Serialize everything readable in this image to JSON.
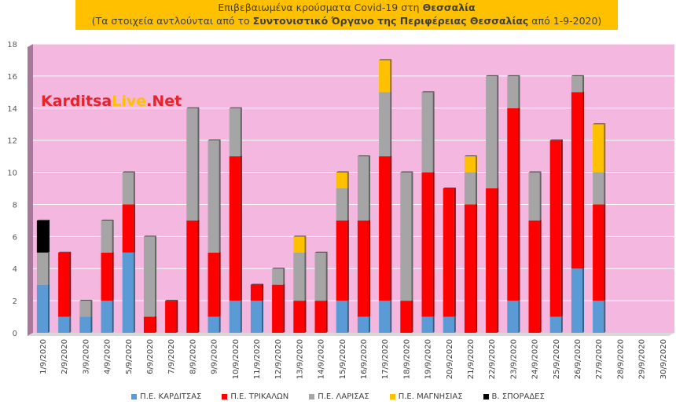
{
  "title": {
    "line1_prefix": "Επιβεβαιωμένα κρούσματα Covid-19 στη ",
    "line1_bold": "Θεσσαλία",
    "line2_prefix": "(Τα στοιχεία αντλούνται από το ",
    "line2_bold": "Συντονιστικό Όργανο της Περιφέρειας Θεσσαλίας",
    "line2_suffix": " από 1-9-2020)"
  },
  "logo": {
    "part1": "Karditsa",
    "part2": "Live",
    "part3": ".Net"
  },
  "colors": {
    "karditsa": "#5b9bd5",
    "trikala": "#ff0000",
    "larisa": "#a5a5a5",
    "magnisia": "#ffc000",
    "sporades": "#000000",
    "plot_bg": "#f4b8e0",
    "grid": "#ffffff"
  },
  "chart_data": {
    "type": "bar",
    "stacked": true,
    "categories": [
      "1/9/2020",
      "2/9/2020",
      "3/9/2020",
      "4/9/2020",
      "5/9/2020",
      "6/9/2020",
      "7/9/2020",
      "8/9/2020",
      "9/9/2020",
      "10/9/2020",
      "11/9/2020",
      "12/9/2020",
      "13/9/2020",
      "14/9/2020",
      "15/9/2020",
      "16/9/2020",
      "17/9/2020",
      "18/9/2020",
      "19/9/2020",
      "20/9/2020",
      "21/9/2020",
      "22/9/2020",
      "23/9/2020",
      "24/9/2020",
      "25/9/2020",
      "26/9/2020",
      "27/9/2020",
      "28/9/2020",
      "29/9/2020",
      "30/9/2020"
    ],
    "series": [
      {
        "name": "Π.Ε. ΚΑΡΔΙΤΣΑΣ",
        "values": [
          3,
          1,
          1,
          2,
          5,
          0,
          0,
          0,
          1,
          2,
          2,
          0,
          0,
          0,
          2,
          1,
          2,
          0,
          1,
          1,
          0,
          0,
          2,
          0,
          1,
          4,
          2,
          0,
          0,
          0
        ]
      },
      {
        "name": "Π.Ε. ΤΡΙΚΑΛΩΝ",
        "values": [
          0,
          4,
          0,
          3,
          3,
          1,
          2,
          7,
          4,
          9,
          1,
          3,
          2,
          2,
          5,
          6,
          9,
          2,
          9,
          8,
          8,
          9,
          12,
          7,
          11,
          11,
          6,
          0,
          0,
          0
        ]
      },
      {
        "name": "Π.Ε. ΛΑΡΙΣΑΣ",
        "values": [
          2,
          0,
          1,
          2,
          2,
          5,
          0,
          7,
          7,
          3,
          0,
          1,
          3,
          3,
          2,
          4,
          4,
          8,
          5,
          0,
          2,
          7,
          2,
          3,
          0,
          1,
          2,
          0,
          0,
          0
        ]
      },
      {
        "name": "Π.Ε. ΜΑΓΝΗΣΙΑΣ",
        "values": [
          0,
          0,
          0,
          0,
          0,
          0,
          0,
          0,
          0,
          0,
          0,
          0,
          1,
          0,
          1,
          0,
          2,
          0,
          0,
          0,
          1,
          0,
          0,
          0,
          0,
          0,
          3,
          0,
          0,
          0
        ]
      },
      {
        "name": "Β. ΣΠΟΡΑΔΕΣ",
        "values": [
          2,
          0,
          0,
          0,
          0,
          0,
          0,
          0,
          0,
          0,
          0,
          0,
          0,
          0,
          0,
          0,
          0,
          0,
          0,
          0,
          0,
          0,
          0,
          0,
          0,
          0,
          0,
          0,
          0,
          0
        ]
      }
    ],
    "ylim": [
      0,
      18
    ],
    "yticks": [
      0,
      2,
      4,
      6,
      8,
      10,
      12,
      14,
      16,
      18
    ],
    "grid": true,
    "legend_position": "bottom"
  }
}
